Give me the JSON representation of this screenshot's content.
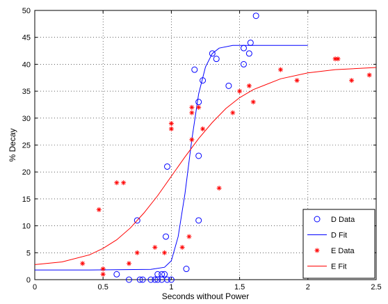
{
  "chart_data": {
    "type": "scatter",
    "xlabel": "Seconds without Power",
    "ylabel": "% Decay",
    "xlim": [
      0,
      2.5
    ],
    "ylim": [
      0,
      50
    ],
    "xticks": [
      0,
      0.5,
      1,
      1.5,
      2,
      2.5
    ],
    "xtick_labels": [
      "0",
      "0.5",
      "1",
      "1.5",
      "2",
      "2.5"
    ],
    "yticks": [
      0,
      5,
      10,
      15,
      20,
      25,
      30,
      35,
      40,
      45,
      50
    ],
    "ytick_labels": [
      "0",
      "5",
      "10",
      "15",
      "20",
      "25",
      "30",
      "35",
      "40",
      "45",
      "50"
    ],
    "grid": true,
    "legend_position": "bottom-right",
    "series": [
      {
        "name": "D Data",
        "kind": "points",
        "marker": "circle",
        "color": "#0000ff",
        "points": [
          [
            0.6,
            1
          ],
          [
            0.69,
            0
          ],
          [
            0.75,
            11
          ],
          [
            0.77,
            0
          ],
          [
            0.79,
            0
          ],
          [
            0.85,
            0
          ],
          [
            0.88,
            0
          ],
          [
            0.9,
            1
          ],
          [
            0.9,
            0
          ],
          [
            0.93,
            1
          ],
          [
            0.93,
            0
          ],
          [
            0.95,
            1
          ],
          [
            0.96,
            8
          ],
          [
            0.97,
            21
          ],
          [
            0.97,
            0
          ],
          [
            1.0,
            0
          ],
          [
            1.11,
            2
          ],
          [
            1.17,
            39
          ],
          [
            1.2,
            33
          ],
          [
            1.2,
            23
          ],
          [
            1.2,
            11
          ],
          [
            1.23,
            37
          ],
          [
            1.3,
            42
          ],
          [
            1.33,
            41
          ],
          [
            1.42,
            36
          ],
          [
            1.53,
            43
          ],
          [
            1.53,
            40
          ],
          [
            1.57,
            42
          ],
          [
            1.58,
            44
          ],
          [
            1.62,
            49
          ]
        ]
      },
      {
        "name": "D Fit",
        "kind": "line",
        "color": "#0000ff",
        "points": [
          [
            0,
            1.8
          ],
          [
            0.4,
            1.8
          ],
          [
            0.85,
            1.9
          ],
          [
            0.95,
            2.3
          ],
          [
            1.0,
            3.5
          ],
          [
            1.05,
            8
          ],
          [
            1.1,
            16
          ],
          [
            1.15,
            26
          ],
          [
            1.2,
            34.5
          ],
          [
            1.25,
            39.5
          ],
          [
            1.3,
            42
          ],
          [
            1.35,
            43
          ],
          [
            1.45,
            43.5
          ],
          [
            1.6,
            43.5
          ],
          [
            2.0,
            43.5
          ]
        ]
      },
      {
        "name": "E Data",
        "kind": "points",
        "marker": "asterisk",
        "color": "#ff0000",
        "points": [
          [
            0.35,
            3
          ],
          [
            0.47,
            13
          ],
          [
            0.5,
            2
          ],
          [
            0.5,
            1
          ],
          [
            0.6,
            18
          ],
          [
            0.65,
            18
          ],
          [
            0.69,
            3
          ],
          [
            0.75,
            5
          ],
          [
            0.88,
            6
          ],
          [
            0.95,
            5
          ],
          [
            1.0,
            29
          ],
          [
            1.0,
            28
          ],
          [
            1.08,
            6
          ],
          [
            1.13,
            8
          ],
          [
            1.15,
            32
          ],
          [
            1.15,
            31
          ],
          [
            1.15,
            26
          ],
          [
            1.2,
            32
          ],
          [
            1.23,
            28
          ],
          [
            1.35,
            17
          ],
          [
            1.45,
            31
          ],
          [
            1.5,
            35
          ],
          [
            1.57,
            36
          ],
          [
            1.6,
            33
          ],
          [
            1.8,
            39
          ],
          [
            1.92,
            37
          ],
          [
            2.2,
            41
          ],
          [
            2.22,
            41
          ],
          [
            2.32,
            37
          ],
          [
            2.45,
            38
          ]
        ]
      },
      {
        "name": "E Fit",
        "kind": "line",
        "color": "#ff0000",
        "points": [
          [
            0,
            2.8
          ],
          [
            0.2,
            3.3
          ],
          [
            0.4,
            4.6
          ],
          [
            0.5,
            5.8
          ],
          [
            0.6,
            7.4
          ],
          [
            0.7,
            9.6
          ],
          [
            0.8,
            12.4
          ],
          [
            0.9,
            15.6
          ],
          [
            1.0,
            19.2
          ],
          [
            1.1,
            22.8
          ],
          [
            1.2,
            26.2
          ],
          [
            1.3,
            29.2
          ],
          [
            1.4,
            31.8
          ],
          [
            1.5,
            33.8
          ],
          [
            1.6,
            35.3
          ],
          [
            1.8,
            37.3
          ],
          [
            2.0,
            38.4
          ],
          [
            2.2,
            39.0
          ],
          [
            2.5,
            39.4
          ]
        ]
      }
    ]
  }
}
